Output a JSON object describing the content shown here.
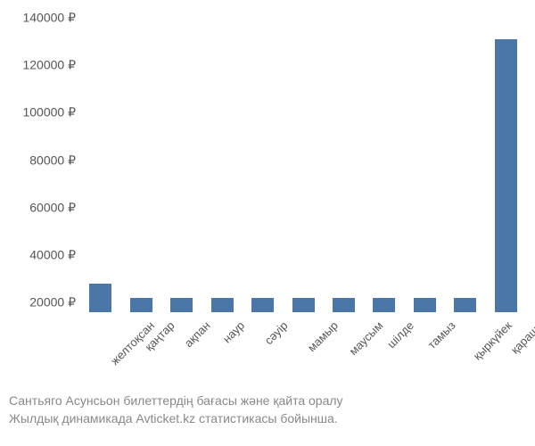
{
  "chart": {
    "type": "bar",
    "categories": [
      "желтоқсан",
      "қаңтар",
      "ақпан",
      "наур",
      "сәуір",
      "мамыр",
      "маусым",
      "шілде",
      "тамыз",
      "қыркүйек",
      "қараша"
    ],
    "values": [
      28000,
      22000,
      22000,
      22000,
      22000,
      22000,
      22000,
      22000,
      22000,
      22000,
      131000
    ],
    "bar_color": "#4a76a8",
    "ylim": [
      16000,
      140000
    ],
    "yticks": [
      20000,
      40000,
      60000,
      80000,
      100000,
      120000,
      140000
    ],
    "ytick_labels": [
      "20000 ₽",
      "40000 ₽",
      "60000 ₽",
      "80000 ₽",
      "100000 ₽",
      "120000 ₽",
      "140000 ₽"
    ],
    "background_color": "#ffffff",
    "label_color": "#555555",
    "caption_color": "#888888",
    "label_fontsize": 14,
    "caption_fontsize": 14,
    "bar_width_ratio": 0.55,
    "xlabel_rotation": -45
  },
  "caption": {
    "line1": "Сантьяго Асунсьон билеттердің бағасы және қайта оралу",
    "line2": "Жылдық динамикада Avticket.kz статистикасы бойынша."
  }
}
